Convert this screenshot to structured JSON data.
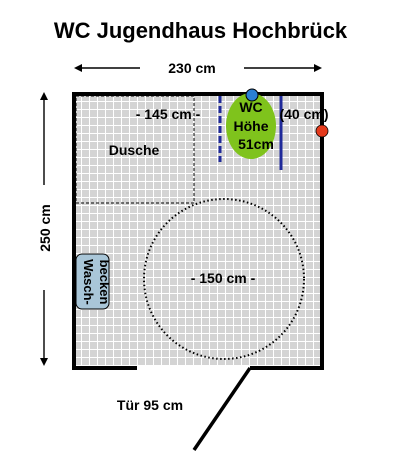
{
  "title": "WC Jugendhaus Hochbrück",
  "width_label": "230 cm",
  "height_label": "250 cm",
  "shower": {
    "width_label": "- 145 cm -",
    "label": "Dusche"
  },
  "wc": {
    "line1": "WC",
    "line2": "Höhe",
    "line3": "51cm",
    "space_label": "(40 cm)"
  },
  "turning_circle_label": "- 150 cm -",
  "sink": {
    "line1": "Wasch-",
    "line2": "becken"
  },
  "door_label": "Tür 95 cm",
  "colors": {
    "wall": "#000000",
    "grid_tile": "#d4d4d4",
    "grid_line": "#ffffff",
    "wc_bowl": "#7fc31c",
    "grab_bar": "#1f2a9a",
    "flush_button": "#2a7fd4",
    "alarm_button": "#e53a1c",
    "sink_fill": "#a9c6d8"
  }
}
